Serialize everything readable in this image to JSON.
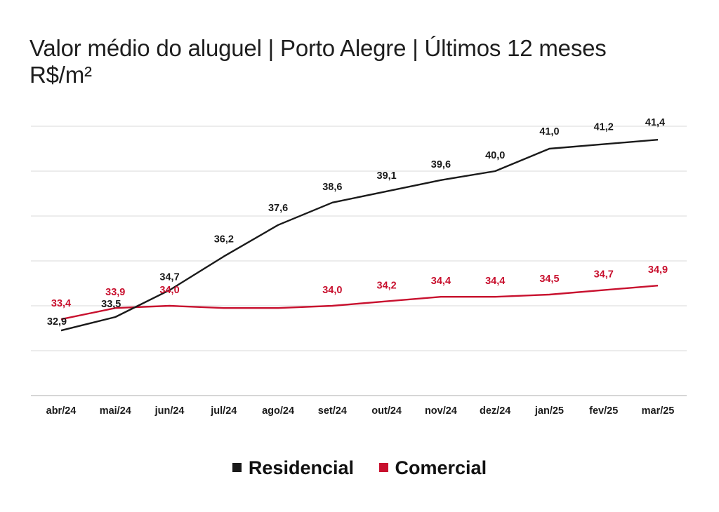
{
  "colors": {
    "residencial": "#1a1a1a",
    "comercial": "#c8102e",
    "grid": "#d9d9d9"
  },
  "chart_data": {
    "type": "line",
    "title": "Valor médio do aluguel | Porto Alegre | Últimos 12 meses",
    "subtitle": "R$/m²",
    "categories": [
      "abr/24",
      "mai/24",
      "jun/24",
      "jul/24",
      "ago/24",
      "set/24",
      "out/24",
      "nov/24",
      "dez/24",
      "jan/25",
      "fev/25",
      "mar/25"
    ],
    "series": [
      {
        "name": "Residencial",
        "color": "#1a1a1a",
        "values": [
          32.9,
          33.5,
          34.7,
          36.2,
          37.6,
          38.6,
          39.1,
          39.6,
          40.0,
          41.0,
          41.2,
          41.4
        ],
        "labels": [
          "32,9",
          "33,5",
          "34,7",
          "36,2",
          "37,6",
          "38,6",
          "39,1",
          "39,6",
          "40,0",
          "41,0",
          "41,2",
          "41,4"
        ]
      },
      {
        "name": "Comercial",
        "color": "#c8102e",
        "values": [
          33.4,
          33.9,
          34.0,
          33.9,
          33.9,
          34.0,
          34.2,
          34.4,
          34.4,
          34.5,
          34.7,
          34.9
        ],
        "labels": [
          "33,4",
          "33,9",
          "34,0",
          "",
          "",
          "34,0",
          "34,2",
          "34,4",
          "34,4",
          "34,5",
          "34,7",
          "34,9"
        ]
      }
    ],
    "ylim": [
      30,
      42
    ],
    "grid": true,
    "legend": "bottom-center"
  }
}
